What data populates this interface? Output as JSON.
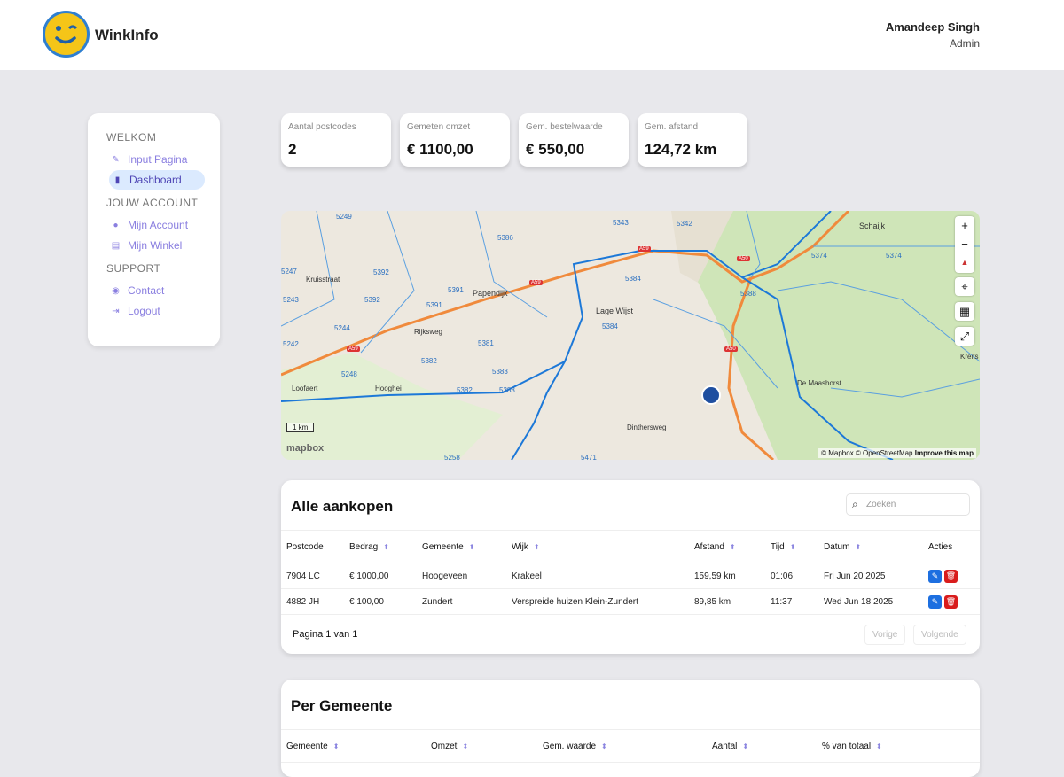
{
  "header": {
    "brand": "WinkInfo",
    "user_name": "Amandeep Singh",
    "user_role": "Admin"
  },
  "sidebar": {
    "sections": [
      {
        "title": "WELKOM",
        "items": [
          {
            "label": "Input Pagina",
            "icon": "edit-icon"
          },
          {
            "label": "Dashboard",
            "icon": "bar-chart-icon",
            "active": true
          }
        ]
      },
      {
        "title": "JOUW ACCOUNT",
        "items": [
          {
            "label": "Mijn Account",
            "icon": "user-icon"
          },
          {
            "label": "Mijn Winkel",
            "icon": "store-icon"
          }
        ]
      },
      {
        "title": "SUPPORT",
        "items": [
          {
            "label": "Contact",
            "icon": "user-circle-icon"
          },
          {
            "label": "Logout",
            "icon": "logout-icon"
          }
        ]
      }
    ]
  },
  "stats": [
    {
      "label": "Aantal postcodes",
      "value": "2"
    },
    {
      "label": "Gemeten omzet",
      "value": "€ 1100,00"
    },
    {
      "label": "Gem. bestelwaarde",
      "value": "€ 550,00"
    },
    {
      "label": "Gem. afstand",
      "value": "124,72 km"
    }
  ],
  "map": {
    "places": [
      "Schaijk",
      "Papendijk",
      "Lage Wijst",
      "Kruisstraat",
      "De Maashorst",
      "Kreits",
      "Loofaert",
      "Hooghei",
      "Rijksweg",
      "Dinthersweg"
    ],
    "postcodes": [
      "5249",
      "5386",
      "5343",
      "5342",
      "5374",
      "5374",
      "5392",
      "5391",
      "5391",
      "5384",
      "5388",
      "5392",
      "5244",
      "5381",
      "5382",
      "5384",
      "5242",
      "5248",
      "5383",
      "5382",
      "5383",
      "5258",
      "5471",
      "5247",
      "5243"
    ],
    "roads": [
      "A59",
      "A59",
      "A50",
      "A50",
      "A59"
    ],
    "scale": "1 km",
    "attribution": "© Mapbox © OpenStreetMap",
    "improve": "Improve this map",
    "logo": "mapbox",
    "zoom_in": "+",
    "zoom_out": "−"
  },
  "purchases": {
    "title": "Alle aankopen",
    "search_placeholder": "Zoeken",
    "columns": [
      "Postcode",
      "Bedrag",
      "Gemeente",
      "Wijk",
      "Afstand",
      "Tijd",
      "Datum",
      "Acties"
    ],
    "rows": [
      [
        "7904 LC",
        "€ 1000,00",
        "Hoogeveen",
        "Krakeel",
        "159,59 km",
        "01:06",
        "Fri Jun 20 2025"
      ],
      [
        "4882 JH",
        "€ 100,00",
        "Zundert",
        "Verspreide huizen Klein-Zundert",
        "89,85 km",
        "11:37",
        "Wed Jun 18 2025"
      ]
    ],
    "pagination": "Pagina 1 van 1",
    "prev": "Vorige",
    "next": "Volgende"
  },
  "per_gemeente": {
    "title": "Per Gemeente",
    "columns": [
      "Gemeente",
      "Omzet",
      "Gem. waarde",
      "Aantal",
      "% van totaal"
    ]
  },
  "colors": {
    "accent": "#8b7fe0",
    "edit": "#1d6fe0",
    "delete": "#d91c1c",
    "map_boundary": "#1c78d8",
    "motorway": "#f08a3c",
    "forest": "#c8e3b0"
  }
}
